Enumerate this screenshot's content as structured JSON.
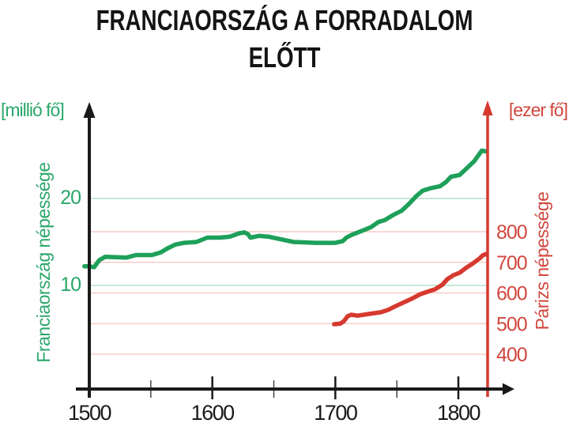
{
  "title": {
    "line1": "FRANCIAORSZÁG A FORRADALOM",
    "line2": "ELŐTT"
  },
  "chart_data": {
    "type": "line",
    "title": "FRANCIAORSZÁG A FORRADALOM ELŐTT",
    "grid": true,
    "legend": "none",
    "x_axis": {
      "tick_labels": [
        "1500",
        "1600",
        "1700",
        "1800"
      ],
      "tick_years": [
        1500,
        1600,
        1700,
        1800
      ],
      "minor_tick_years": [
        1550,
        1650,
        1750
      ],
      "range_years": [
        1500,
        1824
      ]
    },
    "left_axis": {
      "unit_label": "[millió fő]",
      "axis_title": "Franciaország népessége",
      "tick_values": [
        10,
        20
      ],
      "range": [
        0,
        28
      ],
      "text_color": "#2BA76A",
      "grid_color": "#A6D9C1"
    },
    "right_axis": {
      "unit_label": "[ezer fő]",
      "axis_title": "Párizs népessége",
      "tick_values": [
        400,
        500,
        600,
        700,
        800
      ],
      "range": [
        300,
        900
      ],
      "text_color": "#D1473E",
      "grid_color": "#F3C4BD"
    },
    "series": [
      {
        "name": "Franciaország népessége",
        "axis": "left",
        "unit": "millió fő",
        "color": "#1EA05A",
        "points": [
          [
            1496,
            12.2
          ],
          [
            1500,
            12.2
          ],
          [
            1504,
            12.1
          ],
          [
            1508,
            12.9
          ],
          [
            1513,
            13.3
          ],
          [
            1530,
            13.2
          ],
          [
            1538,
            13.5
          ],
          [
            1551,
            13.5
          ],
          [
            1558,
            13.8
          ],
          [
            1564,
            14.3
          ],
          [
            1570,
            14.7
          ],
          [
            1577,
            14.9
          ],
          [
            1587,
            15.0
          ],
          [
            1596,
            15.5
          ],
          [
            1606,
            15.5
          ],
          [
            1614,
            15.6
          ],
          [
            1622,
            16.0
          ],
          [
            1626,
            16.1
          ],
          [
            1629,
            15.9
          ],
          [
            1631,
            15.5
          ],
          [
            1638,
            15.7
          ],
          [
            1646,
            15.6
          ],
          [
            1656,
            15.3
          ],
          [
            1666,
            15.0
          ],
          [
            1684,
            14.9
          ],
          [
            1700,
            14.9
          ],
          [
            1706,
            15.1
          ],
          [
            1709,
            15.5
          ],
          [
            1713,
            15.8
          ],
          [
            1722,
            16.3
          ],
          [
            1729,
            16.7
          ],
          [
            1735,
            17.3
          ],
          [
            1740,
            17.5
          ],
          [
            1747,
            18.1
          ],
          [
            1754,
            18.6
          ],
          [
            1760,
            19.4
          ],
          [
            1766,
            20.3
          ],
          [
            1771,
            20.9
          ],
          [
            1778,
            21.2
          ],
          [
            1785,
            21.4
          ],
          [
            1790,
            21.9
          ],
          [
            1794,
            22.5
          ],
          [
            1801,
            22.7
          ],
          [
            1807,
            23.5
          ],
          [
            1813,
            24.3
          ],
          [
            1816,
            24.9
          ],
          [
            1819,
            25.5
          ],
          [
            1823,
            25.4
          ]
        ]
      },
      {
        "name": "Párizs népessége",
        "axis": "right",
        "unit": "ezer fő",
        "color": "#D6392F",
        "points": [
          [
            1699,
            498
          ],
          [
            1704,
            500
          ],
          [
            1707,
            508
          ],
          [
            1710,
            524
          ],
          [
            1713,
            529
          ],
          [
            1718,
            526
          ],
          [
            1728,
            532
          ],
          [
            1737,
            537
          ],
          [
            1743,
            545
          ],
          [
            1749,
            557
          ],
          [
            1756,
            570
          ],
          [
            1763,
            583
          ],
          [
            1769,
            596
          ],
          [
            1775,
            604
          ],
          [
            1781,
            612
          ],
          [
            1787,
            627
          ],
          [
            1791,
            645
          ],
          [
            1796,
            658
          ],
          [
            1801,
            666
          ],
          [
            1806,
            681
          ],
          [
            1812,
            697
          ],
          [
            1817,
            712
          ],
          [
            1820,
            723
          ],
          [
            1823,
            728
          ]
        ]
      }
    ]
  }
}
